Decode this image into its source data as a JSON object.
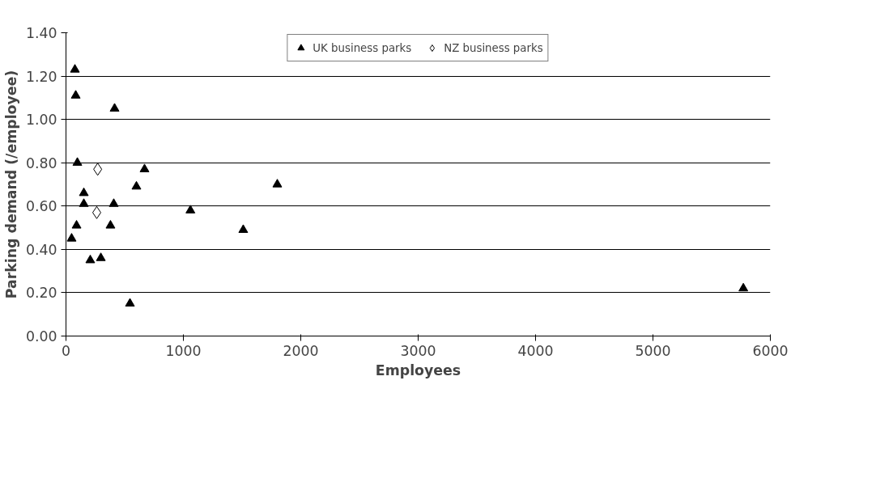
{
  "chart_data": {
    "type": "scatter",
    "xlabel": "Employees",
    "ylabel": "Parking demand (/employee)",
    "xlim": [
      0,
      6000
    ],
    "xticks": [
      0,
      1000,
      2000,
      3000,
      4000,
      5000,
      6000
    ],
    "ylim": [
      0,
      1.4
    ],
    "yticks": [
      {
        "value": 0,
        "label": "0.00"
      },
      {
        "value": 0.2,
        "label": "0.20"
      },
      {
        "value": 0.4,
        "label": "0.40"
      },
      {
        "value": 0.6,
        "label": "0.60"
      },
      {
        "value": 0.8,
        "label": "0.80"
      },
      {
        "value": 1.0,
        "label": "1.00"
      },
      {
        "value": 1.2,
        "label": "1.20"
      },
      {
        "value": 1.4,
        "label": "1.40"
      }
    ],
    "grid": "y",
    "legend": "top",
    "series": [
      {
        "name": "UK business parks",
        "color": "#000000",
        "marker": "triangle",
        "x": [
          76,
          83,
          414,
          97,
          669,
          600,
          152,
          152,
          407,
          90,
          379,
          48,
          207,
          297,
          545,
          1060,
          1510,
          1800,
          5770
        ],
        "values": [
          1.23,
          1.11,
          1.05,
          0.8,
          0.77,
          0.69,
          0.66,
          0.61,
          0.61,
          0.51,
          0.51,
          0.45,
          0.35,
          0.36,
          0.15,
          0.58,
          0.49,
          0.7,
          0.22
        ]
      },
      {
        "name": "NZ business parks",
        "color": "#000000",
        "marker": "diamond",
        "x": [
          270,
          262
        ],
        "values": [
          0.77,
          0.57
        ]
      }
    ]
  }
}
